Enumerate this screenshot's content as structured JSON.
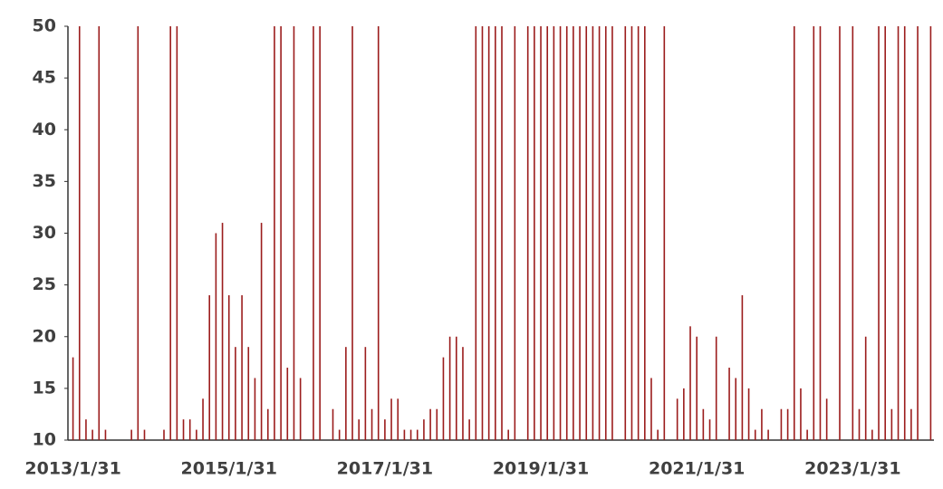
{
  "chart_data": {
    "type": "bar",
    "color": "#9b1c1c",
    "categories": [
      "2013/1/31",
      null,
      null,
      null,
      null,
      null,
      null,
      null,
      null,
      null,
      null,
      null,
      null,
      null,
      null,
      null,
      null,
      null,
      null,
      null,
      null,
      null,
      null,
      null,
      "2015/1/31",
      null,
      null,
      null,
      null,
      null,
      null,
      null,
      null,
      null,
      null,
      null,
      null,
      null,
      null,
      null,
      null,
      null,
      null,
      null,
      null,
      null,
      null,
      null,
      "2017/1/31",
      null,
      null,
      null,
      null,
      null,
      null,
      null,
      null,
      null,
      null,
      null,
      null,
      null,
      null,
      null,
      null,
      null,
      null,
      null,
      null,
      null,
      null,
      null,
      "2019/1/31",
      null,
      null,
      null,
      null,
      null,
      null,
      null,
      null,
      null,
      null,
      null,
      null,
      null,
      null,
      null,
      null,
      null,
      null,
      null,
      null,
      null,
      null,
      null,
      "2021/1/31",
      null,
      null,
      null,
      null,
      null,
      null,
      null,
      null,
      null,
      null,
      null,
      null,
      null,
      null,
      null,
      null,
      null,
      null,
      null,
      null,
      null,
      null,
      null,
      "2023/1/31",
      null,
      null,
      null,
      null,
      null,
      null,
      null,
      null,
      null,
      null,
      null,
      null
    ],
    "values": [
      18,
      50,
      12,
      11,
      50,
      11,
      10,
      10,
      10,
      11,
      50,
      11,
      10,
      10,
      11,
      50,
      50,
      12,
      12,
      11,
      14,
      24,
      30,
      31,
      24,
      19,
      24,
      19,
      16,
      31,
      13,
      50,
      50,
      17,
      50,
      16,
      10,
      50,
      50,
      10,
      13,
      11,
      19,
      50,
      12,
      19,
      13,
      50,
      12,
      14,
      14,
      11,
      11,
      11,
      12,
      13,
      13,
      18,
      20,
      20,
      19,
      12,
      50,
      50,
      50,
      50,
      50,
      11,
      50,
      10,
      50,
      50,
      50,
      50,
      50,
      50,
      50,
      50,
      50,
      50,
      50,
      50,
      50,
      50,
      10,
      50,
      50,
      50,
      50,
      16,
      11,
      50,
      10,
      14,
      15,
      21,
      20,
      13,
      12,
      20,
      10,
      17,
      16,
      24,
      15,
      11,
      13,
      11,
      10,
      13,
      13,
      50,
      15,
      11,
      50,
      50,
      14,
      10,
      50,
      10,
      50,
      13,
      20,
      11,
      50,
      50,
      13,
      50,
      50,
      13,
      50,
      10,
      50
    ],
    "ylim": [
      10,
      50
    ],
    "yticks": [
      10,
      15,
      20,
      25,
      30,
      35,
      40,
      45,
      50
    ],
    "grid": false
  }
}
